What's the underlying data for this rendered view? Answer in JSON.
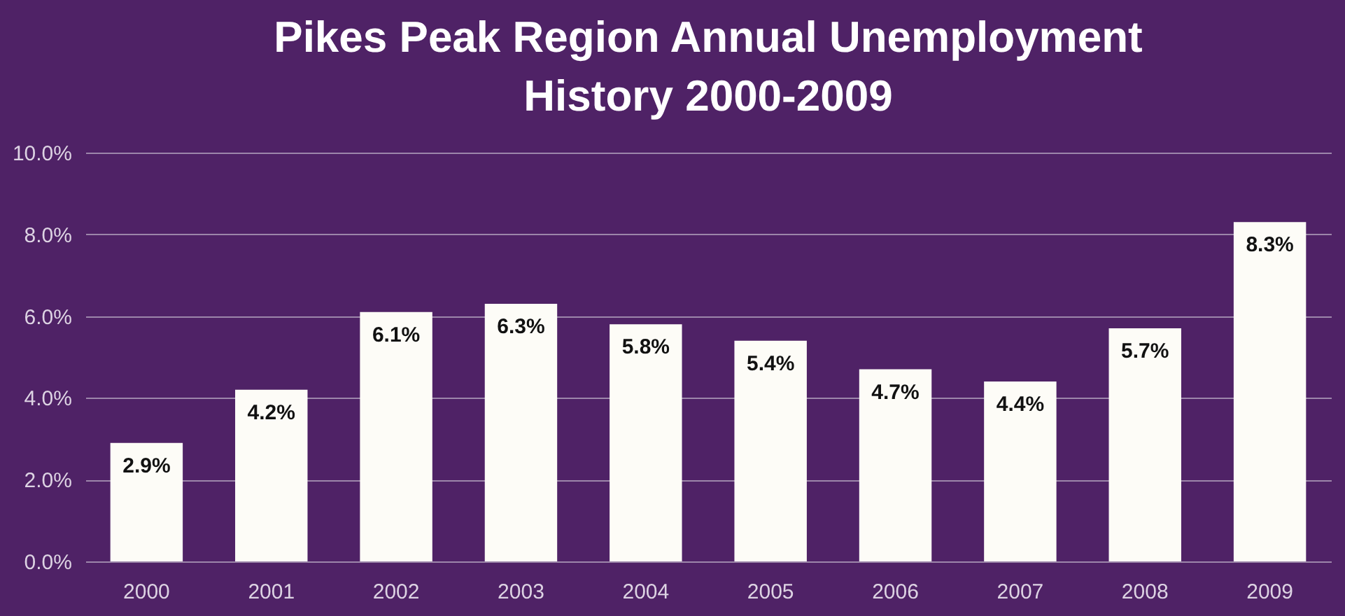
{
  "chart_data": {
    "type": "bar",
    "title": "Pikes Peak Region Annual Unemployment\nHistory 2000-2009",
    "categories": [
      "2000",
      "2001",
      "2002",
      "2003",
      "2004",
      "2005",
      "2006",
      "2007",
      "2008",
      "2009"
    ],
    "values": [
      2.9,
      4.2,
      6.1,
      6.3,
      5.8,
      5.4,
      4.7,
      4.4,
      5.7,
      8.3
    ],
    "value_labels": [
      "2.9%",
      "4.2%",
      "6.1%",
      "6.3%",
      "5.8%",
      "5.4%",
      "4.7%",
      "4.4%",
      "5.7%",
      "8.3%"
    ],
    "color": "#fdfcf7",
    "ylim": [
      0,
      10
    ],
    "yticks": [
      {
        "value": 0,
        "label": "0.0%"
      },
      {
        "value": 2,
        "label": "2.0%"
      },
      {
        "value": 4,
        "label": "4.0%"
      },
      {
        "value": 6,
        "label": "6.0%"
      },
      {
        "value": 8,
        "label": "8.0%"
      },
      {
        "value": 10,
        "label": "10.0%"
      }
    ],
    "grid": "y"
  }
}
